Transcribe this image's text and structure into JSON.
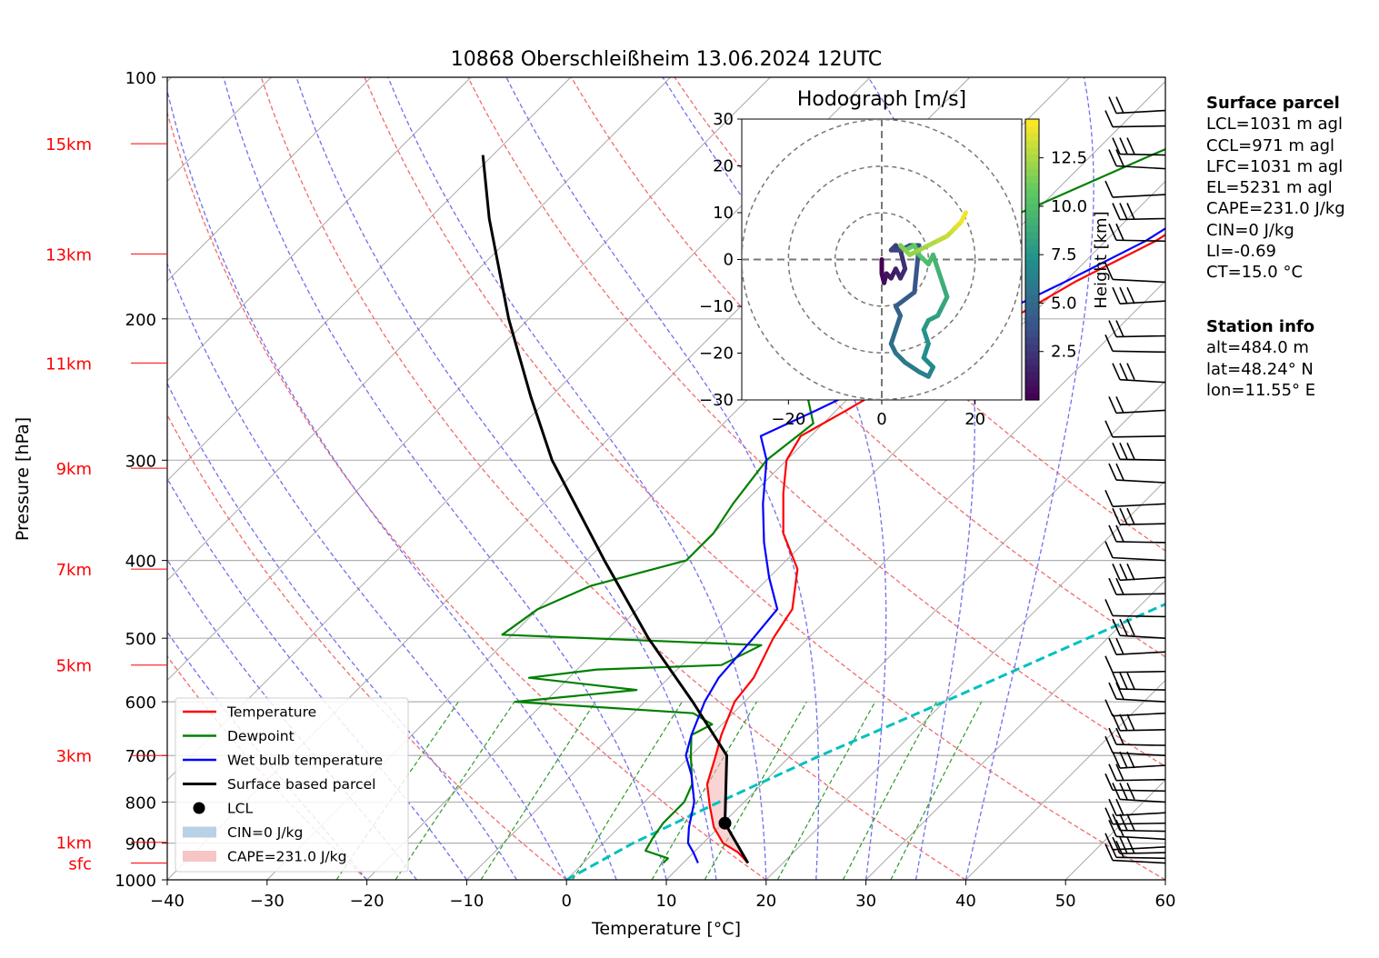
{
  "chart_data": {
    "type": "skew-t",
    "title": "10868 Oberschleißheim 13.06.2024 12UTC",
    "xlabel": "Temperature [°C]",
    "ylabel": "Pressure [hPa]",
    "xlim": [
      -40,
      60
    ],
    "ylim": [
      1000,
      100
    ],
    "x_ticks": [
      "−40",
      "−30",
      "−20",
      "−10",
      "0",
      "10",
      "20",
      "30",
      "40",
      "50",
      "60"
    ],
    "pressure_ticks": [
      100,
      200,
      300,
      400,
      500,
      600,
      700,
      800,
      900,
      1000
    ],
    "height_labels": [
      {
        "label": "sfc",
        "p": 953
      },
      {
        "label": "1km",
        "p": 898
      },
      {
        "label": "3km",
        "p": 700
      },
      {
        "label": "5km",
        "p": 540
      },
      {
        "label": "7km",
        "p": 410
      },
      {
        "label": "9km",
        "p": 307
      },
      {
        "label": "11km",
        "p": 227
      },
      {
        "label": "13km",
        "p": 166
      },
      {
        "label": "15km",
        "p": 121
      }
    ],
    "series": [
      {
        "name": "Temperature",
        "color": "#ff0000",
        "points": [
          [
            16.5,
            953
          ],
          [
            14.5,
            925
          ],
          [
            12,
            900
          ],
          [
            9.5,
            860
          ],
          [
            7,
            810
          ],
          [
            4.5,
            760
          ],
          [
            2.5,
            700
          ],
          [
            1,
            660
          ],
          [
            -1,
            600
          ],
          [
            -1.5,
            560
          ],
          [
            -3.5,
            500
          ],
          [
            -4.5,
            460
          ],
          [
            -8,
            410
          ],
          [
            -13,
            370
          ],
          [
            -17,
            330
          ],
          [
            -20,
            300
          ],
          [
            -21,
            280
          ],
          [
            -19,
            260
          ],
          [
            -17,
            240
          ],
          [
            -14,
            220
          ],
          [
            -11,
            195
          ],
          [
            -9,
            180
          ],
          [
            -5,
            160
          ],
          [
            -3,
            145
          ],
          [
            -2,
            130
          ],
          [
            0,
            117
          ],
          [
            1,
            110
          ]
        ]
      },
      {
        "name": "Dewpoint",
        "color": "#008000",
        "points": [
          [
            8,
            953
          ],
          [
            8,
            940
          ],
          [
            5,
            920
          ],
          [
            4.5,
            890
          ],
          [
            4,
            850
          ],
          [
            4,
            800
          ],
          [
            3,
            760
          ],
          [
            0,
            700
          ],
          [
            -2,
            660
          ],
          [
            -1,
            640
          ],
          [
            -4,
            620
          ],
          [
            -23,
            600
          ],
          [
            -12,
            580
          ],
          [
            -24,
            560
          ],
          [
            -18,
            547
          ],
          [
            -6,
            540
          ],
          [
            -4,
            510
          ],
          [
            -31,
            495
          ],
          [
            -30,
            460
          ],
          [
            -27,
            430
          ],
          [
            -20,
            400
          ],
          [
            -20,
            370
          ],
          [
            -21,
            340
          ],
          [
            -22,
            300
          ],
          [
            -21,
            270
          ],
          [
            -26,
            240
          ],
          [
            -30,
            225
          ],
          [
            -35,
            200
          ],
          [
            -33,
            180
          ],
          [
            -25,
            160
          ],
          [
            -19,
            140
          ],
          [
            -14,
            125
          ],
          [
            -10,
            115
          ]
        ]
      },
      {
        "name": "Wet bulb temperature",
        "color": "#0000ff",
        "points": [
          [
            11.5,
            953
          ],
          [
            10,
            925
          ],
          [
            8.5,
            900
          ],
          [
            7,
            860
          ],
          [
            5,
            800
          ],
          [
            2,
            740
          ],
          [
            -0.5,
            700
          ],
          [
            -2,
            660
          ],
          [
            -4,
            600
          ],
          [
            -5,
            560
          ],
          [
            -5.5,
            500
          ],
          [
            -6,
            460
          ],
          [
            -10,
            420
          ],
          [
            -14,
            380
          ],
          [
            -18,
            340
          ],
          [
            -22,
            300
          ],
          [
            -25,
            280
          ],
          [
            -22,
            260
          ],
          [
            -19,
            240
          ],
          [
            -16,
            220
          ],
          [
            -13,
            195
          ],
          [
            -10,
            180
          ],
          [
            -6,
            160
          ],
          [
            -4,
            145
          ],
          [
            -3,
            130
          ],
          [
            -1,
            117
          ],
          [
            0,
            110
          ]
        ]
      },
      {
        "name": "Surface based parcel",
        "color": "#000000",
        "points": [
          [
            16.5,
            953
          ],
          [
            10.2,
            850
          ],
          [
            3.6,
            700
          ],
          [
            -5.2,
            600
          ],
          [
            -16,
            500
          ],
          [
            -28.2,
            400
          ],
          [
            -43.5,
            300
          ],
          [
            -52,
            250
          ],
          [
            -62,
            200
          ],
          [
            -74,
            150
          ],
          [
            -81,
            125
          ]
        ]
      }
    ],
    "lcl": {
      "name": "LCL",
      "t": 10.2,
      "p": 850
    },
    "cin": {
      "name": "CIN=0 J/kg",
      "value": 0
    },
    "cape": {
      "name": "CAPE=231.0 J/kg",
      "value": 231.0
    },
    "reference_line": {
      "color": "#00c0c0",
      "points": [
        [
          0,
          1000
        ],
        [
          3,
          900
        ],
        [
          7.5,
          800
        ],
        [
          13,
          700
        ],
        [
          20,
          600
        ],
        [
          28,
          500
        ],
        [
          38,
          400
        ],
        [
          52,
          300
        ],
        [
          76,
          200
        ],
        [
          92,
          160
        ]
      ]
    },
    "wind_barbs_p": [
      953,
      940,
      925,
      910,
      890,
      870,
      850,
      825,
      800,
      775,
      750,
      720,
      700,
      680,
      650,
      620,
      600,
      580,
      550,
      520,
      500,
      470,
      440,
      420,
      400,
      380,
      360,
      340,
      320,
      300,
      280,
      260,
      240,
      220,
      210,
      190,
      180,
      160,
      150,
      140,
      130,
      125,
      115,
      110
    ],
    "hodograph": {
      "title": "Hodograph [m/s]",
      "xlim": [
        -30,
        30
      ],
      "ylim": [
        -30,
        30
      ],
      "ticks": [
        "−30",
        "−20",
        "−10",
        "0",
        "10",
        "20",
        "30"
      ],
      "x_ticks": [
        "−20",
        "0",
        "20"
      ],
      "rings": [
        10,
        20,
        30
      ],
      "u": [
        0,
        0,
        0.5,
        1,
        2,
        3,
        4,
        5,
        4,
        3,
        2,
        4,
        6,
        8,
        7,
        3,
        4,
        3,
        2,
        3,
        5,
        8,
        10,
        11,
        9,
        10,
        9,
        10,
        12,
        13,
        14,
        13,
        12,
        11,
        10,
        9,
        8,
        7,
        5,
        4,
        5,
        6,
        8,
        10,
        12,
        14,
        15,
        16,
        17,
        18
      ],
      "v": [
        0,
        -3,
        -5,
        -3,
        -4,
        -2,
        -4,
        -2,
        2,
        3,
        2,
        2,
        3,
        3,
        -7,
        -10,
        -12,
        -15,
        -18,
        -20,
        -22,
        -24,
        -25,
        -23,
        -21,
        -18,
        -15,
        -13,
        -12,
        -10,
        -8,
        -5,
        -2,
        1,
        -1,
        0,
        1,
        3,
        2,
        3,
        2,
        1,
        2,
        3,
        4,
        5,
        6,
        7,
        8,
        10
      ],
      "colorbar_label": "Height [km]",
      "colorbar_ticks": [
        "2.5",
        "5.0",
        "7.5",
        "10.0",
        "12.5"
      ],
      "colorbar_values": [
        2.5,
        5.0,
        7.5,
        10.0,
        12.5
      ],
      "height_max_km": 14.5
    }
  },
  "surface_parcel": {
    "title": "Surface parcel",
    "lines": [
      "LCL=1031 m agl",
      "CCL=971 m agl",
      "LFC=1031 m agl",
      "EL=5231 m agl",
      "CAPE=231.0 J/kg",
      "CIN=0 J/kg",
      "LI=-0.69",
      "CT=15.0 °C"
    ]
  },
  "station_info": {
    "title": "Station info",
    "lines": [
      "alt=484.0 m",
      "lat=48.24° N",
      "lon=11.55° E"
    ]
  }
}
